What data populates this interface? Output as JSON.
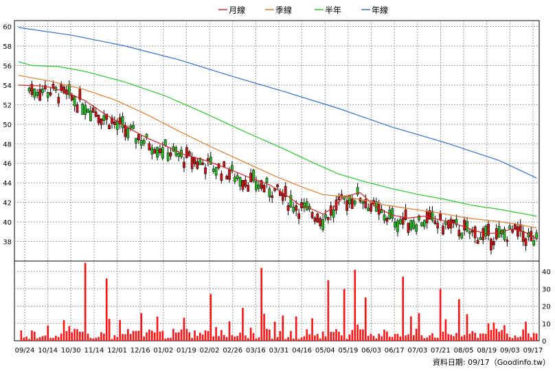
{
  "legend": [
    {
      "label": "月線",
      "color": "#d62020"
    },
    {
      "label": "季線",
      "color": "#e87722"
    },
    {
      "label": "半年",
      "color": "#22cc22"
    },
    {
      "label": "年線",
      "color": "#2a6fd6"
    }
  ],
  "footer": "資料日期: 09/17（Goodinfo.tw）",
  "chart_data": {
    "type": "line",
    "price_axis": {
      "ticks": [
        38,
        40,
        42,
        44,
        46,
        48,
        50,
        52,
        54,
        56,
        58,
        60
      ],
      "ylim": [
        36,
        60.6
      ]
    },
    "volume_axis": {
      "ticks": [
        0,
        10,
        20,
        30,
        40
      ],
      "ylim": [
        0,
        46
      ]
    },
    "x_tick_labels": [
      "09/24",
      "10/14",
      "10/30",
      "11/14",
      "12/01",
      "12/16",
      "01/02",
      "01/19",
      "02/02",
      "02/26",
      "03/16",
      "03/31",
      "04/16",
      "05/04",
      "05/19",
      "06/03",
      "06/17",
      "07/03",
      "07/21",
      "08/05",
      "08/19",
      "09/03",
      "09/17"
    ],
    "grid": true,
    "candles_up_color": "#22bb22",
    "candles_down_color": "#cc1111",
    "volume_color": "#ff1111",
    "ma_series": [
      {
        "name": "月線",
        "points": [
          [
            0,
            54.0
          ],
          [
            10,
            53.9
          ],
          [
            18,
            53.3
          ],
          [
            25,
            52.4
          ],
          [
            32,
            51.1
          ],
          [
            40,
            49.8
          ],
          [
            48,
            48.6
          ],
          [
            55,
            47.8
          ],
          [
            62,
            46.9
          ],
          [
            70,
            46.3
          ],
          [
            78,
            45.5
          ],
          [
            86,
            44.6
          ],
          [
            94,
            43.8
          ],
          [
            100,
            42.8
          ],
          [
            105,
            41.8
          ],
          [
            110,
            41.3
          ],
          [
            114,
            40.8
          ],
          [
            118,
            41.5
          ],
          [
            122,
            42.6
          ],
          [
            128,
            43.0
          ],
          [
            134,
            41.5
          ],
          [
            140,
            40.7
          ],
          [
            146,
            40.4
          ],
          [
            152,
            40.6
          ],
          [
            158,
            40.2
          ],
          [
            164,
            39.8
          ],
          [
            170,
            39.2
          ],
          [
            175,
            38.8
          ],
          [
            180,
            38.9
          ],
          [
            185,
            39.3
          ],
          [
            190,
            38.9
          ],
          [
            194,
            38.3
          ]
        ]
      },
      {
        "name": "季線",
        "points": [
          [
            0,
            55.0
          ],
          [
            12,
            54.4
          ],
          [
            24,
            53.6
          ],
          [
            36,
            52.5
          ],
          [
            48,
            51.0
          ],
          [
            60,
            49.3
          ],
          [
            72,
            47.7
          ],
          [
            84,
            46.2
          ],
          [
            96,
            44.7
          ],
          [
            106,
            43.6
          ],
          [
            114,
            42.8
          ],
          [
            122,
            42.6
          ],
          [
            130,
            42.2
          ],
          [
            138,
            41.7
          ],
          [
            148,
            41.3
          ],
          [
            158,
            40.9
          ],
          [
            168,
            40.4
          ],
          [
            178,
            40.1
          ],
          [
            186,
            39.8
          ],
          [
            194,
            39.4
          ]
        ]
      },
      {
        "name": "半年",
        "points": [
          [
            0,
            56.4
          ],
          [
            5,
            56.0
          ],
          [
            15,
            55.9
          ],
          [
            25,
            55.4
          ],
          [
            40,
            54.3
          ],
          [
            55,
            52.9
          ],
          [
            70,
            51.1
          ],
          [
            85,
            49.2
          ],
          [
            100,
            47.4
          ],
          [
            110,
            46.1
          ],
          [
            120,
            44.9
          ],
          [
            130,
            44.1
          ],
          [
            140,
            43.4
          ],
          [
            150,
            42.8
          ],
          [
            160,
            42.3
          ],
          [
            170,
            41.7
          ],
          [
            180,
            41.3
          ],
          [
            194,
            40.6
          ]
        ]
      },
      {
        "name": "年線",
        "points": [
          [
            0,
            59.9
          ],
          [
            20,
            59.1
          ],
          [
            40,
            58.0
          ],
          [
            60,
            56.6
          ],
          [
            80,
            54.9
          ],
          [
            100,
            53.3
          ],
          [
            120,
            51.6
          ],
          [
            140,
            49.7
          ],
          [
            160,
            48.1
          ],
          [
            180,
            46.3
          ],
          [
            194,
            44.5
          ]
        ]
      }
    ]
  }
}
